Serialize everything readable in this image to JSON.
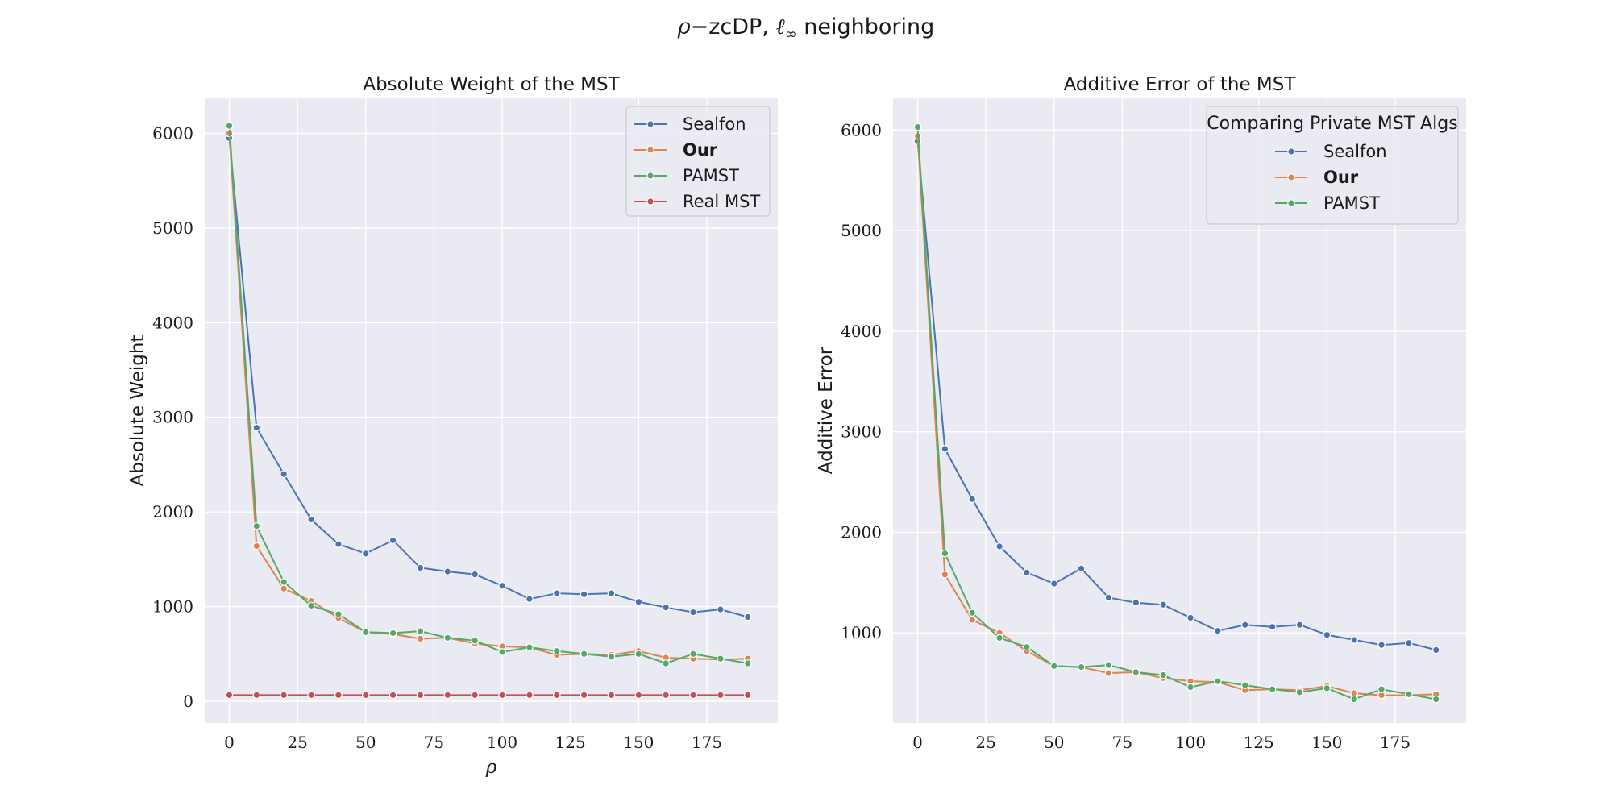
{
  "figure": {
    "suptitle_greek": "ρ",
    "suptitle_mid": "−zcDP, ",
    "suptitle_ell": "ℓ",
    "suptitle_sub": "∞",
    "suptitle_end": " neighboring"
  },
  "chart_data": [
    {
      "type": "line",
      "title": "Absolute Weight of the MST",
      "xlabel": "ρ",
      "ylabel": "Absolute Weight",
      "xlim": [
        -9,
        201
      ],
      "ylim": [
        -230,
        6370
      ],
      "xticks": [
        0,
        25,
        50,
        75,
        100,
        125,
        150,
        175
      ],
      "yticks": [
        0,
        1000,
        2000,
        3000,
        4000,
        5000,
        6000
      ],
      "grid": true,
      "legend": {
        "placement": "top-right",
        "title": ""
      },
      "x": [
        0,
        10,
        20,
        30,
        40,
        50,
        60,
        70,
        80,
        90,
        100,
        110,
        120,
        130,
        140,
        150,
        160,
        170,
        180,
        190
      ],
      "series": [
        {
          "name": "Sealfon",
          "bold": false,
          "color": "#4c72b0",
          "values": [
            5950,
            2890,
            2400,
            1920,
            1660,
            1560,
            1700,
            1410,
            1370,
            1340,
            1220,
            1080,
            1140,
            1130,
            1140,
            1050,
            990,
            940,
            970,
            890
          ]
        },
        {
          "name": "Our",
          "bold": true,
          "color": "#dd8452",
          "values": [
            6000,
            1640,
            1190,
            1060,
            880,
            730,
            710,
            660,
            670,
            610,
            580,
            570,
            490,
            500,
            490,
            530,
            460,
            450,
            440,
            450
          ]
        },
        {
          "name": "PAMST",
          "bold": false,
          "color": "#55a868",
          "values": [
            6080,
            1850,
            1260,
            1010,
            920,
            730,
            720,
            740,
            670,
            640,
            520,
            570,
            530,
            500,
            470,
            500,
            400,
            500,
            450,
            400
          ]
        },
        {
          "name": "Real MST",
          "bold": false,
          "color": "#c44e52",
          "values": [
            65,
            65,
            65,
            65,
            65,
            65,
            65,
            65,
            65,
            65,
            65,
            65,
            65,
            65,
            65,
            65,
            65,
            65,
            65,
            65
          ]
        }
      ]
    },
    {
      "type": "line",
      "title": "Additive Error of the MST",
      "xlabel": "",
      "ylabel": "Additive Error",
      "xlim": [
        -9,
        201
      ],
      "ylim": [
        104,
        6315
      ],
      "xticks": [
        0,
        25,
        50,
        75,
        100,
        125,
        150,
        175
      ],
      "yticks": [
        1000,
        2000,
        3000,
        4000,
        5000,
        6000
      ],
      "grid": true,
      "legend": {
        "placement": "top-right",
        "title": "Comparing Private MST Algs"
      },
      "x": [
        0,
        10,
        20,
        30,
        40,
        50,
        60,
        70,
        80,
        90,
        100,
        110,
        120,
        130,
        140,
        150,
        160,
        170,
        180,
        190
      ],
      "series": [
        {
          "name": "Sealfon",
          "bold": false,
          "color": "#4c72b0",
          "values": [
            5890,
            2830,
            2330,
            1860,
            1600,
            1490,
            1640,
            1350,
            1300,
            1280,
            1150,
            1020,
            1080,
            1060,
            1080,
            980,
            930,
            880,
            900,
            830
          ]
        },
        {
          "name": "Our",
          "bold": true,
          "color": "#dd8452",
          "values": [
            5940,
            1580,
            1130,
            1000,
            820,
            670,
            660,
            600,
            610,
            550,
            520,
            510,
            430,
            440,
            430,
            470,
            400,
            380,
            380,
            390
          ]
        },
        {
          "name": "PAMST",
          "bold": false,
          "color": "#55a868",
          "values": [
            6030,
            1790,
            1200,
            950,
            860,
            670,
            660,
            680,
            610,
            580,
            460,
            520,
            480,
            440,
            410,
            450,
            340,
            440,
            390,
            340
          ]
        }
      ]
    }
  ]
}
